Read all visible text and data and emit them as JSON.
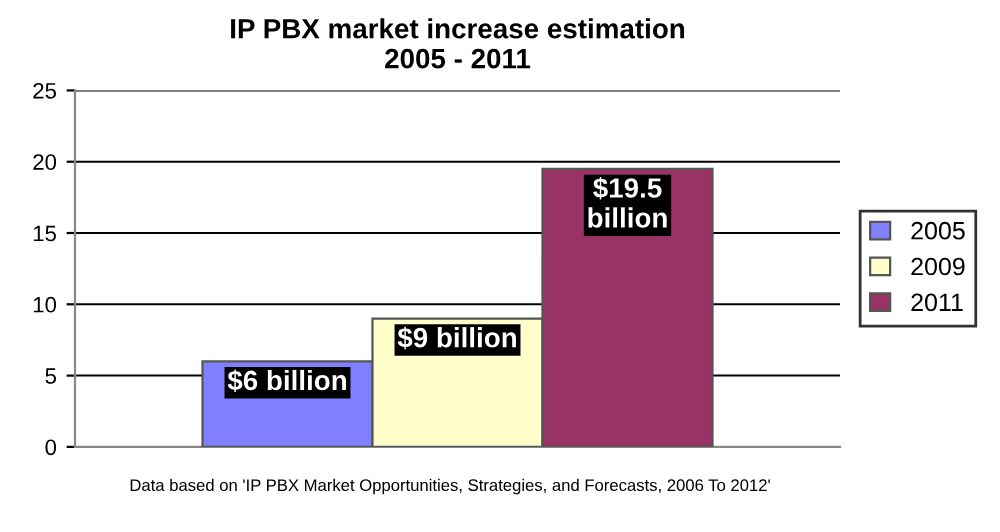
{
  "chart_data": {
    "type": "bar",
    "title": "IP PBX market increase estimation\n2005 - 2011",
    "categories": [
      null
    ],
    "series": [
      {
        "name": "2005",
        "color": "#8080ff",
        "values": [
          6
        ],
        "value_labels": [
          "$6 billion"
        ]
      },
      {
        "name": "2009",
        "color": "#ffffcc",
        "values": [
          9
        ],
        "value_labels": [
          "$9 billion"
        ]
      },
      {
        "name": "2011",
        "color": "#993366",
        "values": [
          19.5
        ],
        "value_labels": [
          "$19.5 billion"
        ]
      }
    ],
    "ylim": [
      0,
      25
    ],
    "yticks": [
      0,
      5,
      10,
      15,
      20,
      25
    ],
    "grid": "y",
    "legend": "right",
    "annotations": [
      "Data based on 'IP PBX Market Opportunities, Strategies, and Forecasts, 2006 To 2012'"
    ]
  }
}
